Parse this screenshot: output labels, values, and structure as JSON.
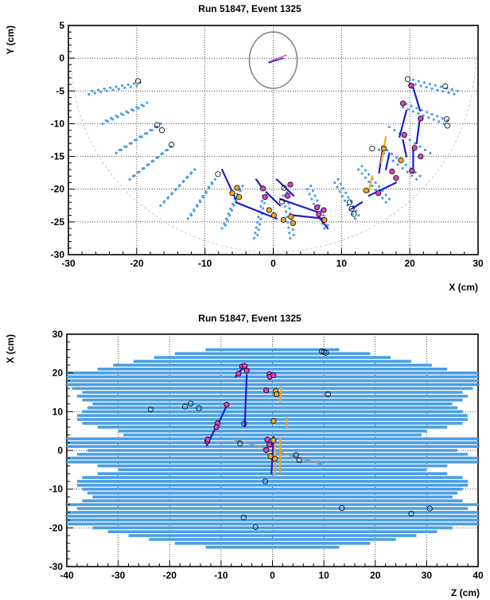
{
  "chart_data": [
    {
      "type": "scatter",
      "title": "Run 51847, Event 1325",
      "xlabel": "X (cm)",
      "ylabel": "Y (cm)",
      "xlim": [
        -30,
        30
      ],
      "ylim": [
        -30,
        5
      ],
      "xticks": [
        -30,
        -20,
        -10,
        0,
        10,
        20,
        30
      ],
      "yticks": [
        -30,
        -25,
        -20,
        -15,
        -10,
        -5,
        0,
        5
      ],
      "grid": true,
      "colors": {
        "detector": "#4a9ee8",
        "hit_orange": "#f5a623",
        "hit_magenta": "#e040c0",
        "track": "#1e1ecc",
        "outline": "#888888",
        "boundary": "#c8c8c8"
      },
      "beam_pipe": {
        "center": [
          0,
          -0.3
        ],
        "rx": 3.5,
        "ry": 4.3
      },
      "vertex_tracks": [
        {
          "x1": -0.7,
          "y1": -0.6,
          "x2": 2.0,
          "y2": 0.5,
          "color": "#e040c0"
        },
        {
          "x1": -0.7,
          "y1": -0.7,
          "x2": 1.5,
          "y2": 0.0,
          "color": "#1e1ecc"
        }
      ],
      "ladders": [
        {
          "x1": -27,
          "y1": -5.5,
          "x2": -20,
          "y2": -4.2
        },
        {
          "x1": -26.5,
          "y1": -5.0,
          "x2": -19.5,
          "y2": -3.7
        },
        {
          "x1": -25,
          "y1": -10,
          "x2": -19,
          "y2": -7.3
        },
        {
          "x1": -24.5,
          "y1": -9.5,
          "x2": -18.5,
          "y2": -6.8
        },
        {
          "x1": -23,
          "y1": -14.5,
          "x2": -17,
          "y2": -10.5
        },
        {
          "x1": -22.5,
          "y1": -14.0,
          "x2": -16.5,
          "y2": -10.0
        },
        {
          "x1": -21,
          "y1": -18.5,
          "x2": -15.5,
          "y2": -14.0
        },
        {
          "x1": -20.5,
          "y1": -18.0,
          "x2": -15.0,
          "y2": -13.5
        },
        {
          "x1": -16.5,
          "y1": -22.5,
          "x2": -12,
          "y2": -17.5
        },
        {
          "x1": -16.0,
          "y1": -22.0,
          "x2": -11.5,
          "y2": -17.0
        },
        {
          "x1": -12.5,
          "y1": -24.5,
          "x2": -9,
          "y2": -19.0
        },
        {
          "x1": -12.0,
          "y1": -24.0,
          "x2": -8.5,
          "y2": -18.5
        },
        {
          "x1": -7.5,
          "y1": -26,
          "x2": -5,
          "y2": -20
        },
        {
          "x1": -7.0,
          "y1": -25.5,
          "x2": -4.5,
          "y2": -19.5
        },
        {
          "x1": -2.8,
          "y1": -27.5,
          "x2": -1.5,
          "y2": -21
        },
        {
          "x1": -2.3,
          "y1": -27.0,
          "x2": -1.0,
          "y2": -20.5
        },
        {
          "x1": 2.5,
          "y1": -27.5,
          "x2": 1.5,
          "y2": -21
        },
        {
          "x1": 3.0,
          "y1": -27.0,
          "x2": 2.0,
          "y2": -20.5
        },
        {
          "x1": 7.5,
          "y1": -26,
          "x2": 5,
          "y2": -20
        },
        {
          "x1": 8.0,
          "y1": -25.5,
          "x2": 5.5,
          "y2": -19.5
        },
        {
          "x1": 12,
          "y1": -24.5,
          "x2": 9,
          "y2": -19
        },
        {
          "x1": 12.5,
          "y1": -24.0,
          "x2": 9.5,
          "y2": -18.5
        },
        {
          "x1": 16.5,
          "y1": -22,
          "x2": 12.5,
          "y2": -17
        },
        {
          "x1": 17.0,
          "y1": -21.5,
          "x2": 13.0,
          "y2": -16.5
        },
        {
          "x1": 21,
          "y1": -18.5,
          "x2": 15.5,
          "y2": -14
        },
        {
          "x1": 21.5,
          "y1": -18.0,
          "x2": 16.0,
          "y2": -13.5
        },
        {
          "x1": 23,
          "y1": -14.5,
          "x2": 17,
          "y2": -10.5
        },
        {
          "x1": 25,
          "y1": -10,
          "x2": 19,
          "y2": -7.5
        },
        {
          "x1": 25.5,
          "y1": -9.5,
          "x2": 19.5,
          "y2": -7.0
        },
        {
          "x1": 26.5,
          "y1": -5.5,
          "x2": 20,
          "y2": -3.8
        },
        {
          "x1": 27,
          "y1": -5.0,
          "x2": 20.5,
          "y2": -3.3
        }
      ],
      "tracks": [
        {
          "x1": -7.5,
          "y1": -17.0,
          "x2": -5.5,
          "y2": -21.5,
          "color": "#1e1ecc"
        },
        {
          "x1": -5.5,
          "y1": -22.0,
          "x2": 0.5,
          "y2": -24.5,
          "color": "#1e1ecc"
        },
        {
          "x1": -2.5,
          "y1": -18.5,
          "x2": -1.5,
          "y2": -20.0,
          "color": "#1e1ecc"
        },
        {
          "x1": -1,
          "y1": -20.5,
          "x2": 1.0,
          "y2": -22.5,
          "color": "#1e1ecc"
        },
        {
          "x1": 0.5,
          "y1": -18.5,
          "x2": 3,
          "y2": -21.0,
          "color": "#1e1ecc"
        },
        {
          "x1": 1,
          "y1": -21.5,
          "x2": 6.5,
          "y2": -23.5,
          "color": "#1e1ecc"
        },
        {
          "x1": 3,
          "y1": -24.0,
          "x2": 7.5,
          "y2": -24.5,
          "color": "#1e1ecc"
        },
        {
          "x1": 6.5,
          "y1": -24.0,
          "x2": 8,
          "y2": -26.0,
          "color": "#1e1ecc"
        },
        {
          "x1": 11.5,
          "y1": -23,
          "x2": 13,
          "y2": -22.0,
          "color": "#1e1ecc"
        },
        {
          "x1": 14,
          "y1": -21,
          "x2": 18,
          "y2": -19.0,
          "color": "#1e1ecc"
        },
        {
          "x1": 16,
          "y1": -14,
          "x2": 15.5,
          "y2": -17.5,
          "color": "#1e1ecc"
        },
        {
          "x1": 17,
          "y1": -14.5,
          "x2": 16.5,
          "y2": -17.0,
          "color": "#1e1ecc"
        },
        {
          "x1": 19,
          "y1": -12.5,
          "x2": 19.5,
          "y2": -15.0,
          "color": "#1e1ecc"
        },
        {
          "x1": 19.5,
          "y1": -8,
          "x2": 18.5,
          "y2": -12.0,
          "color": "#1e1ecc"
        },
        {
          "x1": 20.5,
          "y1": -4.5,
          "x2": 21.5,
          "y2": -8.0,
          "color": "#1e1ecc"
        },
        {
          "x1": 21.5,
          "y1": -9,
          "x2": 21.0,
          "y2": -13.0,
          "color": "#1e1ecc"
        },
        {
          "x1": 20.5,
          "y1": -14,
          "x2": 20.5,
          "y2": -17.5,
          "color": "#1e1ecc"
        },
        {
          "x1": 14.5,
          "y1": -18,
          "x2": 14.0,
          "y2": -20.5,
          "color": "#f5a623"
        },
        {
          "x1": 16.5,
          "y1": -12,
          "x2": 15.8,
          "y2": -16.0,
          "color": "#f5a623"
        }
      ],
      "hits": [
        {
          "x": -19.8,
          "y": -3.5,
          "c": "open"
        },
        {
          "x": -17.0,
          "y": -10.2,
          "c": "open"
        },
        {
          "x": -16.3,
          "y": -11.0,
          "c": "open"
        },
        {
          "x": -14.9,
          "y": -13.2,
          "c": "open"
        },
        {
          "x": -8.1,
          "y": -17.7,
          "c": "open"
        },
        {
          "x": -6.0,
          "y": -20.6,
          "c": "orange"
        },
        {
          "x": -5.3,
          "y": -19.8,
          "c": "orange"
        },
        {
          "x": -5.0,
          "y": -21.2,
          "c": "orange"
        },
        {
          "x": -1.5,
          "y": -19.9,
          "c": "magenta"
        },
        {
          "x": -1.2,
          "y": -21.2,
          "c": "magenta"
        },
        {
          "x": -0.6,
          "y": -23.2,
          "c": "orange"
        },
        {
          "x": 0.1,
          "y": -24.0,
          "c": "orange"
        },
        {
          "x": 1.6,
          "y": -19.8,
          "c": "open"
        },
        {
          "x": 2.1,
          "y": -21.0,
          "c": "magenta"
        },
        {
          "x": 2.5,
          "y": -19.3,
          "c": "magenta"
        },
        {
          "x": 1.3,
          "y": -21.9,
          "c": "open"
        },
        {
          "x": 1.5,
          "y": -24.7,
          "c": "orange"
        },
        {
          "x": 2.6,
          "y": -24.2,
          "c": "orange"
        },
        {
          "x": 2.9,
          "y": -25.2,
          "c": "orange"
        },
        {
          "x": 6.4,
          "y": -22.8,
          "c": "magenta"
        },
        {
          "x": 6.7,
          "y": -23.8,
          "c": "magenta"
        },
        {
          "x": 7.4,
          "y": -23.2,
          "c": "magenta"
        },
        {
          "x": 7.5,
          "y": -24.7,
          "c": "orange"
        },
        {
          "x": 11.2,
          "y": -22.0,
          "c": "open"
        },
        {
          "x": 11.5,
          "y": -23.0,
          "c": "open"
        },
        {
          "x": 11.8,
          "y": -23.8,
          "c": "open"
        },
        {
          "x": 13.6,
          "y": -20.2,
          "c": "orange"
        },
        {
          "x": 15.4,
          "y": -20.6,
          "c": "magenta"
        },
        {
          "x": 14.5,
          "y": -13.8,
          "c": "open"
        },
        {
          "x": 16.2,
          "y": -13.8,
          "c": "orange"
        },
        {
          "x": 17.4,
          "y": -17.3,
          "c": "magenta"
        },
        {
          "x": 18.0,
          "y": -18.3,
          "c": "magenta"
        },
        {
          "x": 18.7,
          "y": -15.6,
          "c": "orange"
        },
        {
          "x": 19.2,
          "y": -11.7,
          "c": "magenta"
        },
        {
          "x": 19.0,
          "y": -6.9,
          "c": "magenta"
        },
        {
          "x": 19.7,
          "y": -3.2,
          "c": "open"
        },
        {
          "x": 20.2,
          "y": -4.2,
          "c": "magenta"
        },
        {
          "x": 21.6,
          "y": -9.2,
          "c": "magenta"
        },
        {
          "x": 20.7,
          "y": -13.7,
          "c": "magenta"
        },
        {
          "x": 21.6,
          "y": -15.0,
          "c": "magenta"
        },
        {
          "x": 20.3,
          "y": -17.2,
          "c": "magenta"
        },
        {
          "x": 25.2,
          "y": -4.3,
          "c": "open"
        },
        {
          "x": 25.4,
          "y": -9.3,
          "c": "open"
        },
        {
          "x": 25.5,
          "y": -10.3,
          "c": "open"
        }
      ]
    },
    {
      "type": "scatter",
      "title": "Run 51847, Event 1325",
      "xlabel": "Z (cm)",
      "ylabel": "X (cm)",
      "xlim": [
        -40,
        40
      ],
      "ylim": [
        -30,
        30
      ],
      "xticks": [
        -40,
        -30,
        -20,
        -10,
        0,
        10,
        20,
        30,
        40
      ],
      "yticks": [
        -30,
        -20,
        -10,
        0,
        10,
        20,
        30
      ],
      "grid": true,
      "colors": {
        "detector": "#4a9ee8",
        "hit_orange": "#f5a623",
        "hit_magenta": "#e040c0",
        "track": "#1e1ecc",
        "outline": "#888888"
      },
      "strips": [
        {
          "x": 26,
          "hw": 13
        },
        {
          "x": 25,
          "hw": 19
        },
        {
          "x": 24,
          "hw": 23
        },
        {
          "x": 23,
          "hw": 27
        },
        {
          "x": 22,
          "hw": 31
        },
        {
          "x": 21,
          "hw": 34
        },
        {
          "x": 20,
          "hw": 40
        },
        {
          "x": 19,
          "hw": 40
        },
        {
          "x": 18,
          "hw": 40
        },
        {
          "x": 17,
          "hw": 40
        },
        {
          "x": 16,
          "hw": 39
        },
        {
          "x": 15,
          "hw": 37
        },
        {
          "x": 14,
          "hw": 38
        },
        {
          "x": 13,
          "hw": 37
        },
        {
          "x": 12,
          "hw": 35
        },
        {
          "x": 11,
          "hw": 36
        },
        {
          "x": 10,
          "hw": 37
        },
        {
          "x": 9,
          "hw": 38
        },
        {
          "x": 8,
          "hw": 38
        },
        {
          "x": 7,
          "hw": 37
        },
        {
          "x": 6,
          "hw": 34
        },
        {
          "x": 5,
          "hw": 30
        },
        {
          "x": 4,
          "hw": 29
        },
        {
          "x": 3,
          "hw": 40
        },
        {
          "x": 2,
          "hw": 40
        },
        {
          "x": 1,
          "hw": 40
        },
        {
          "x": 0,
          "hw": 36
        },
        {
          "x": -1,
          "hw": 38
        },
        {
          "x": -2,
          "hw": 40
        },
        {
          "x": -3,
          "hw": 40
        },
        {
          "x": -4,
          "hw": 34
        },
        {
          "x": -5,
          "hw": 30
        },
        {
          "x": -6,
          "hw": 34
        },
        {
          "x": -7,
          "hw": 37
        },
        {
          "x": -8,
          "hw": 38
        },
        {
          "x": -9,
          "hw": 38
        },
        {
          "x": -10,
          "hw": 37
        },
        {
          "x": -11,
          "hw": 36
        },
        {
          "x": -12,
          "hw": 35
        },
        {
          "x": -13,
          "hw": 37
        },
        {
          "x": -14,
          "hw": 40
        },
        {
          "x": -15,
          "hw": 38
        },
        {
          "x": -16,
          "hw": 40
        },
        {
          "x": -17,
          "hw": 40
        },
        {
          "x": -18,
          "hw": 40
        },
        {
          "x": -19,
          "hw": 40
        },
        {
          "x": -20,
          "hw": 35
        },
        {
          "x": -21,
          "hw": 32
        },
        {
          "x": -22,
          "hw": 28
        },
        {
          "x": -23,
          "hw": 24
        },
        {
          "x": -24,
          "hw": 19
        },
        {
          "x": -25,
          "hw": 13
        }
      ],
      "tracks": [
        {
          "x1": -12.8,
          "y1": 1.2,
          "x2": -10.8,
          "y2": 6.5,
          "color": "#1e1ecc"
        },
        {
          "x1": -10.5,
          "y1": 7,
          "x2": -8.8,
          "y2": 11.8,
          "color": "#1e1ecc"
        },
        {
          "x1": -7.2,
          "y1": 19,
          "x2": -5.6,
          "y2": 21.5,
          "color": "#1e1ecc"
        },
        {
          "x1": -5.4,
          "y1": 6.2,
          "x2": -5.0,
          "y2": 19.5,
          "color": "#1e1ecc"
        },
        {
          "x1": -7.5,
          "y1": 2.8,
          "x2": 9.5,
          "y2": -3.5,
          "color": "#9a9a9a"
        },
        {
          "x1": 0.5,
          "y1": -6.5,
          "x2": 0.5,
          "y2": 3.2,
          "color": "#f5a623"
        },
        {
          "x1": -0.2,
          "y1": -6,
          "x2": 0.2,
          "y2": 3.5,
          "color": "#1e1ecc"
        },
        {
          "x1": 1.5,
          "y1": -5.5,
          "x2": 1.5,
          "y2": 3.0,
          "color": "#f5a623"
        },
        {
          "x1": 1.5,
          "y1": 12.5,
          "x2": 1.8,
          "y2": 16.5,
          "color": "#f5a623"
        },
        {
          "x1": 2.8,
          "y1": 6.0,
          "x2": 2.8,
          "y2": 8.5,
          "color": "#f5a623"
        }
      ],
      "hits": [
        {
          "x": 9.6,
          "y": 25.6,
          "c": "open"
        },
        {
          "x": 10.0,
          "y": 25.4,
          "c": "open"
        },
        {
          "x": 10.4,
          "y": 25.2,
          "c": "open"
        },
        {
          "x": -5.9,
          "y": 21.7,
          "c": "magenta"
        },
        {
          "x": -5.4,
          "y": 21.8,
          "c": "magenta"
        },
        {
          "x": -5.0,
          "y": 20.6,
          "c": "magenta"
        },
        {
          "x": -6.6,
          "y": 19.8,
          "c": "magenta"
        },
        {
          "x": -0.6,
          "y": 19.7,
          "c": "magenta"
        },
        {
          "x": -0.5,
          "y": 19.0,
          "c": "magenta"
        },
        {
          "x": 0.2,
          "y": 19.4,
          "c": "magenta"
        },
        {
          "x": -1.2,
          "y": 15.5,
          "c": "magenta"
        },
        {
          "x": 0.6,
          "y": 15.3,
          "c": "orange"
        },
        {
          "x": 0.8,
          "y": 14.5,
          "c": "orange"
        },
        {
          "x": 10.8,
          "y": 14.5,
          "c": "open"
        },
        {
          "x": -15.9,
          "y": 12.1,
          "c": "open"
        },
        {
          "x": -17.0,
          "y": 11.3,
          "c": "open"
        },
        {
          "x": -14.3,
          "y": 10.9,
          "c": "open"
        },
        {
          "x": -23.7,
          "y": 10.6,
          "c": "open"
        },
        {
          "x": -8.9,
          "y": 11.8,
          "c": "magenta"
        },
        {
          "x": -10.7,
          "y": 7.0,
          "c": "magenta"
        },
        {
          "x": -10.9,
          "y": 6.0,
          "c": "magenta"
        },
        {
          "x": -5.5,
          "y": 6.9,
          "c": "open"
        },
        {
          "x": 0.2,
          "y": 7.6,
          "c": "orange"
        },
        {
          "x": -12.7,
          "y": 2.3,
          "c": "magenta"
        },
        {
          "x": -12.6,
          "y": 2.8,
          "c": "magenta"
        },
        {
          "x": -6.3,
          "y": 1.8,
          "c": "open"
        },
        {
          "x": -1.0,
          "y": 2.8,
          "c": "magenta"
        },
        {
          "x": -0.6,
          "y": 1.5,
          "c": "magenta"
        },
        {
          "x": 0.2,
          "y": 2.6,
          "c": "orange"
        },
        {
          "x": -1.2,
          "y": 0.1,
          "c": "magenta"
        },
        {
          "x": -0.4,
          "y": -1.5,
          "c": "orange"
        },
        {
          "x": 0.5,
          "y": -2.2,
          "c": "orange"
        },
        {
          "x": 4.6,
          "y": -1.2,
          "c": "open"
        },
        {
          "x": 5.2,
          "y": -2.5,
          "c": "open"
        },
        {
          "x": -1.4,
          "y": -8.0,
          "c": "open"
        },
        {
          "x": 13.5,
          "y": -14.9,
          "c": "open"
        },
        {
          "x": 27.0,
          "y": -16.3,
          "c": "open"
        },
        {
          "x": 30.6,
          "y": -15.0,
          "c": "open"
        },
        {
          "x": -5.6,
          "y": -17.3,
          "c": "open"
        },
        {
          "x": -3.3,
          "y": -19.8,
          "c": "open"
        }
      ]
    }
  ]
}
